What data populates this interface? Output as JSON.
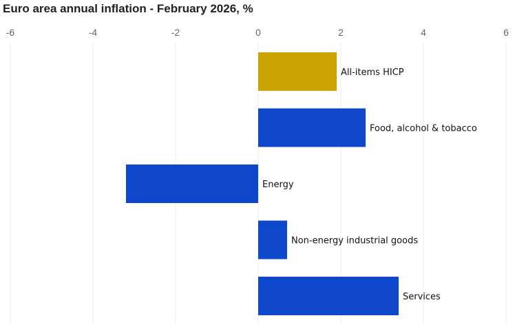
{
  "chart_data": {
    "type": "bar",
    "orientation": "horizontal",
    "title": "Euro area annual inflation - February 2026, %",
    "categories": [
      "All-items HICP",
      "Food, alcohol & tobacco",
      "Energy",
      "Non-energy industrial goods",
      "Services"
    ],
    "values": [
      1.9,
      2.6,
      -3.2,
      0.7,
      3.4
    ],
    "colors": [
      "#CCA300",
      "#0E47CB",
      "#0E47CB",
      "#0E47CB",
      "#0E47CB"
    ],
    "xlim": [
      -6,
      6
    ],
    "xticks": [
      "-6",
      "-4",
      "-2",
      "0",
      "2",
      "4",
      "6"
    ],
    "xaxis_position": "top",
    "grid": "vertical",
    "legend": "none"
  }
}
